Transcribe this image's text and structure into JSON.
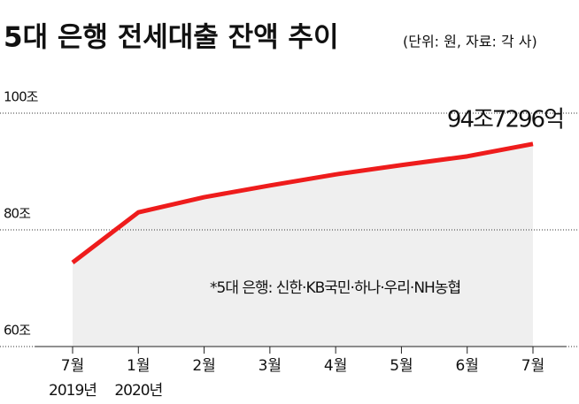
{
  "chart_data": {
    "type": "line",
    "title": "5대 은행 전세대출 잔액 추이",
    "subtitle": "(단위: 원, 자료: 각 사)",
    "annotation": "*5대 은행: 신한·KB국민·하나·우리·NH농협",
    "categories": [
      "7월",
      "1월",
      "2월",
      "3월",
      "4월",
      "5월",
      "6월",
      "7월"
    ],
    "year_labels": [
      "2019년",
      "2020년",
      null,
      null,
      null,
      null,
      null,
      null
    ],
    "values": [
      74.4,
      83.0,
      85.6,
      87.6,
      89.5,
      91.1,
      92.6,
      94.7296
    ],
    "value_labels": [
      null,
      null,
      null,
      null,
      null,
      null,
      null,
      "94조7296억"
    ],
    "color": "#ee1c1c",
    "area_color": "#efefef",
    "ylim": [
      60,
      100
    ],
    "yticks": [
      {
        "value": 60,
        "label": "60조"
      },
      {
        "value": 80,
        "label": "80조"
      },
      {
        "value": 100,
        "label": "100조"
      }
    ],
    "grid": true
  }
}
